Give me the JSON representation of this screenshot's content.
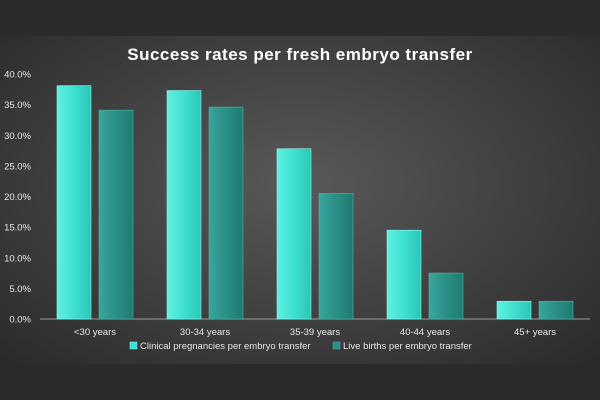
{
  "chart_data": {
    "type": "bar",
    "title": "Success rates per fresh embryo transfer",
    "xlabel": "",
    "ylabel": "",
    "categories": [
      "<30 years",
      "30-34 years",
      "35-39 years",
      "40-44 years",
      "45+ years"
    ],
    "series": [
      {
        "name": "Clinical pregnancies per embryo transfer",
        "values": [
          38.1,
          37.3,
          27.8,
          14.5,
          2.9
        ],
        "color": "#3ee0d0"
      },
      {
        "name": "Live births per embryo transfer",
        "values": [
          34.1,
          34.6,
          20.5,
          7.5,
          2.9
        ],
        "color": "#2a8f86"
      }
    ],
    "ylim": [
      0,
      40
    ],
    "yticks": [
      "0.0%",
      "5.0%",
      "10.0%",
      "15.0%",
      "20.0%",
      "25.0%",
      "30.0%",
      "35.0%",
      "40.0%"
    ],
    "grid": false,
    "legend_position": "bottom"
  }
}
